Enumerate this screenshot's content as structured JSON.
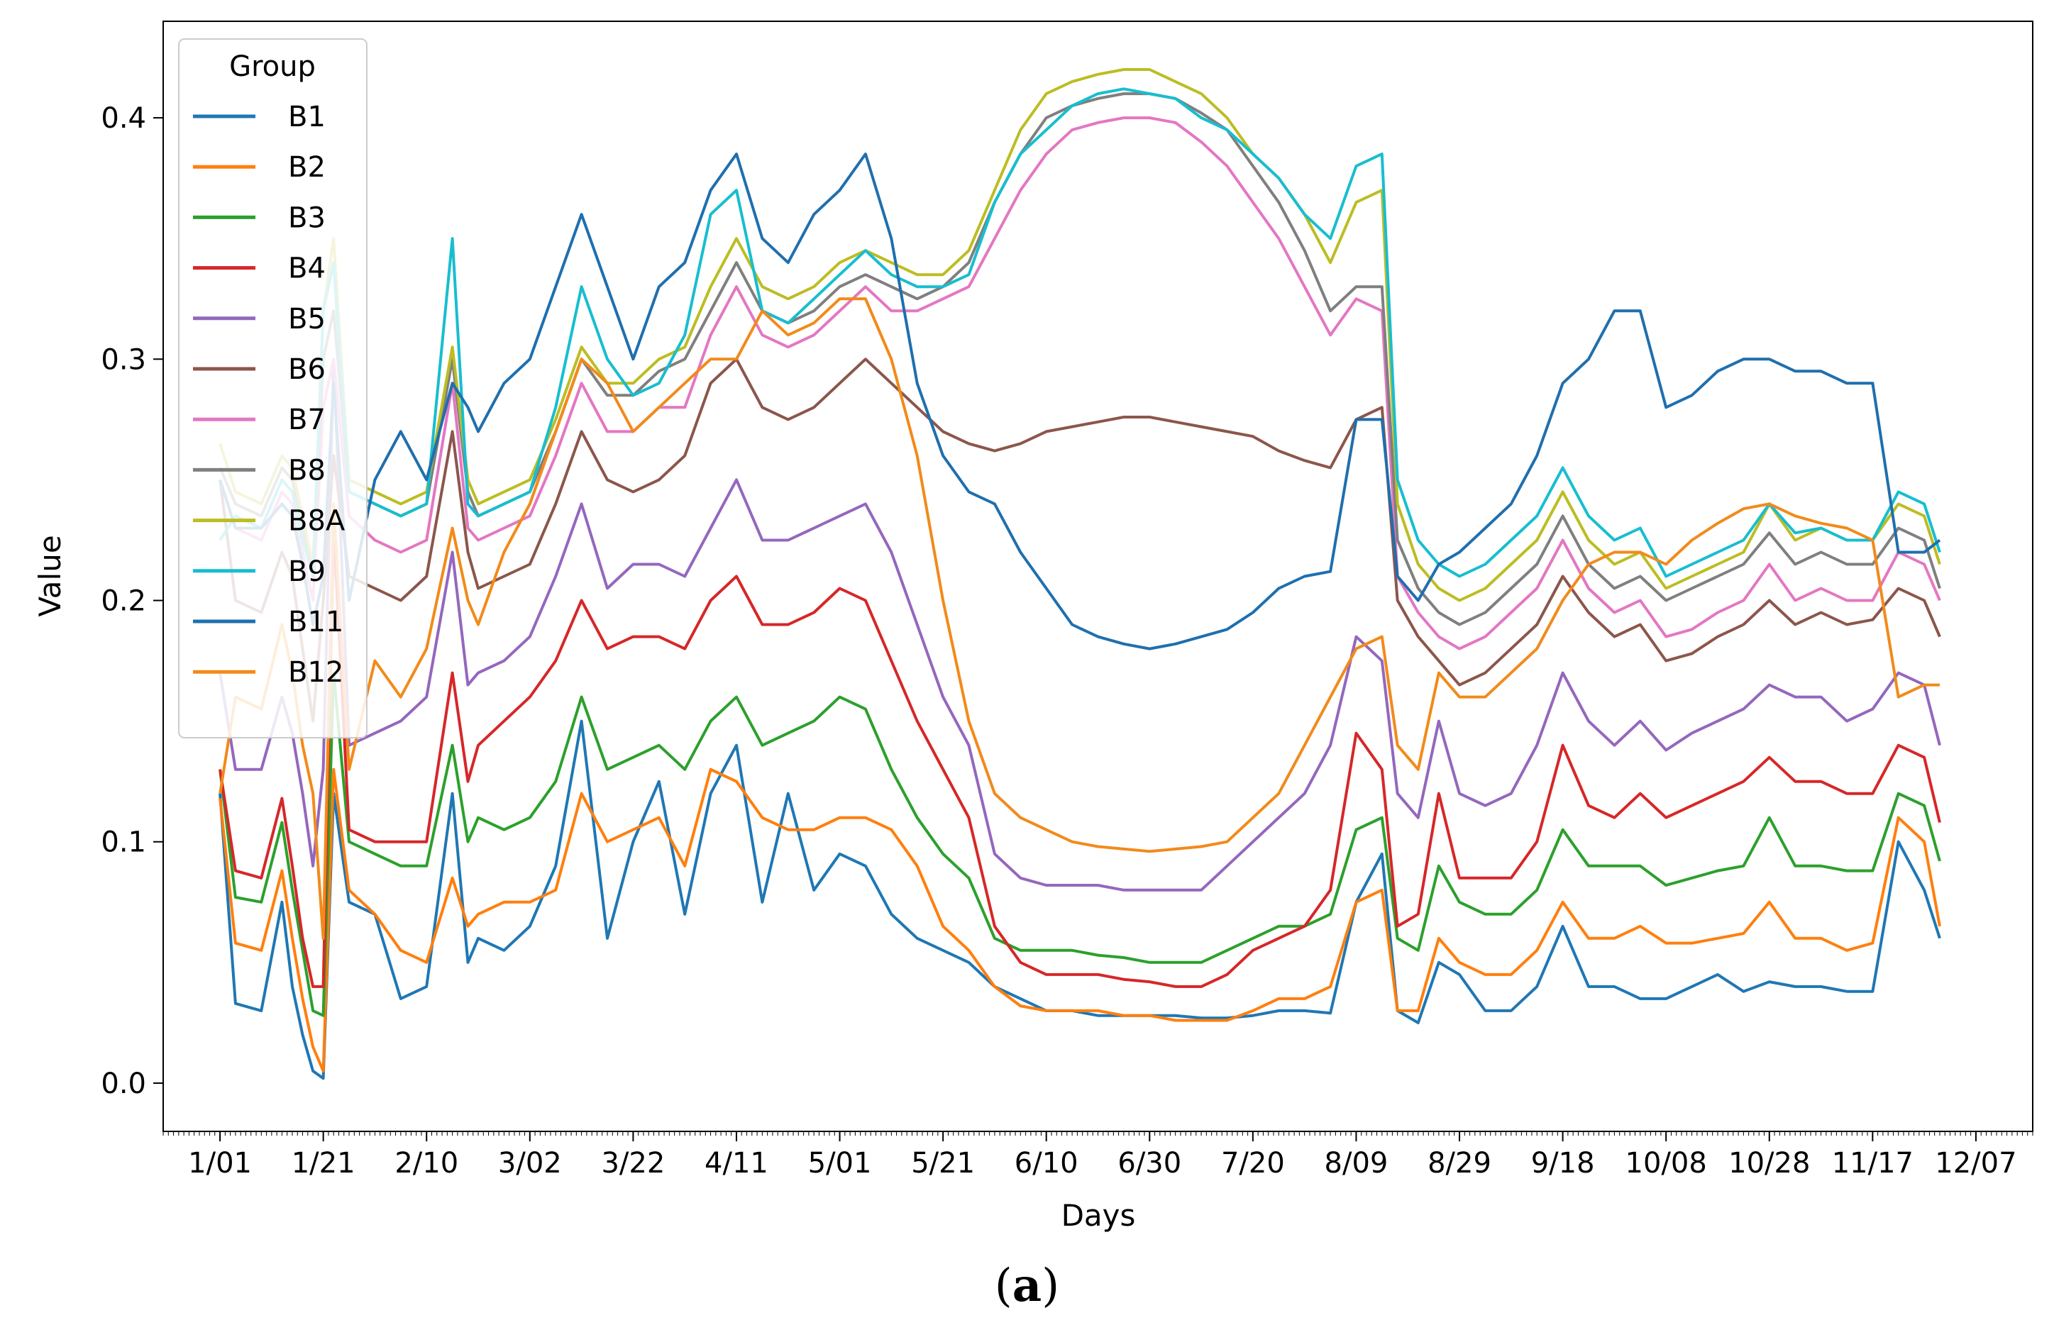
{
  "caption": {
    "open": "(",
    "letter": "a",
    "close": ")"
  },
  "chart_data": {
    "type": "line",
    "title": "",
    "xlabel": "Days",
    "ylabel": "Value",
    "xlim": [
      -11,
      351
    ],
    "ylim": [
      -0.02,
      0.44
    ],
    "x_ticks": [
      {
        "day": 0,
        "label": "1/01"
      },
      {
        "day": 20,
        "label": "1/21"
      },
      {
        "day": 40,
        "label": "2/10"
      },
      {
        "day": 60,
        "label": "3/02"
      },
      {
        "day": 80,
        "label": "3/22"
      },
      {
        "day": 100,
        "label": "4/11"
      },
      {
        "day": 120,
        "label": "5/01"
      },
      {
        "day": 140,
        "label": "5/21"
      },
      {
        "day": 160,
        "label": "6/10"
      },
      {
        "day": 180,
        "label": "6/30"
      },
      {
        "day": 200,
        "label": "7/20"
      },
      {
        "day": 220,
        "label": "8/09"
      },
      {
        "day": 240,
        "label": "8/29"
      },
      {
        "day": 260,
        "label": "9/18"
      },
      {
        "day": 280,
        "label": "10/08"
      },
      {
        "day": 300,
        "label": "10/28"
      },
      {
        "day": 320,
        "label": "11/17"
      },
      {
        "day": 340,
        "label": "12/07"
      }
    ],
    "y_ticks": [
      {
        "value": 0.0,
        "label": "0.0"
      },
      {
        "value": 0.1,
        "label": "0.1"
      },
      {
        "value": 0.2,
        "label": "0.2"
      },
      {
        "value": 0.3,
        "label": "0.3"
      },
      {
        "value": 0.4,
        "label": "0.4"
      }
    ],
    "legend": {
      "title": "Group",
      "position": "top-left"
    },
    "x": [
      0,
      3,
      8,
      12,
      14,
      16,
      18,
      20,
      22,
      25,
      30,
      35,
      40,
      45,
      48,
      50,
      55,
      60,
      65,
      70,
      75,
      80,
      85,
      90,
      95,
      100,
      105,
      110,
      115,
      120,
      125,
      130,
      135,
      140,
      145,
      150,
      155,
      160,
      165,
      170,
      175,
      180,
      185,
      190,
      195,
      200,
      205,
      210,
      215,
      220,
      225,
      228,
      232,
      236,
      240,
      245,
      250,
      255,
      260,
      265,
      270,
      275,
      280,
      285,
      290,
      295,
      300,
      305,
      310,
      315,
      320,
      325,
      330,
      333
    ],
    "series": [
      {
        "name": "B1",
        "color": "#1f77b4",
        "values": [
          0.12,
          0.033,
          0.03,
          0.075,
          0.04,
          0.02,
          0.005,
          0.002,
          0.12,
          0.075,
          0.07,
          0.035,
          0.04,
          0.12,
          0.05,
          0.06,
          0.055,
          0.065,
          0.09,
          0.15,
          0.06,
          0.1,
          0.125,
          0.07,
          0.12,
          0.14,
          0.075,
          0.12,
          0.08,
          0.095,
          0.09,
          0.07,
          0.06,
          0.055,
          0.05,
          0.04,
          0.035,
          0.03,
          0.03,
          0.028,
          0.028,
          0.028,
          0.028,
          0.027,
          0.027,
          0.028,
          0.03,
          0.03,
          0.029,
          0.075,
          0.095,
          0.03,
          0.025,
          0.05,
          0.045,
          0.03,
          0.03,
          0.04,
          0.065,
          0.04,
          0.04,
          0.035,
          0.035,
          0.04,
          0.045,
          0.038,
          0.042,
          0.04,
          0.04,
          0.038,
          0.038,
          0.1,
          0.08,
          0.06
        ]
      },
      {
        "name": "B2",
        "color": "#ff7f0e",
        "values": [
          0.118,
          0.058,
          0.055,
          0.088,
          0.06,
          0.035,
          0.015,
          0.005,
          0.13,
          0.08,
          0.07,
          0.055,
          0.05,
          0.085,
          0.065,
          0.07,
          0.075,
          0.075,
          0.08,
          0.12,
          0.1,
          0.105,
          0.11,
          0.09,
          0.13,
          0.125,
          0.11,
          0.105,
          0.105,
          0.11,
          0.11,
          0.105,
          0.09,
          0.065,
          0.055,
          0.04,
          0.032,
          0.03,
          0.03,
          0.03,
          0.028,
          0.028,
          0.026,
          0.026,
          0.026,
          0.03,
          0.035,
          0.035,
          0.04,
          0.075,
          0.08,
          0.03,
          0.03,
          0.06,
          0.05,
          0.045,
          0.045,
          0.055,
          0.075,
          0.06,
          0.06,
          0.065,
          0.058,
          0.058,
          0.06,
          0.062,
          0.075,
          0.06,
          0.06,
          0.055,
          0.058,
          0.11,
          0.1,
          0.065
        ]
      },
      {
        "name": "B3",
        "color": "#2ca02c",
        "values": [
          0.13,
          0.077,
          0.075,
          0.108,
          0.08,
          0.055,
          0.03,
          0.028,
          0.17,
          0.1,
          0.095,
          0.09,
          0.09,
          0.14,
          0.1,
          0.11,
          0.105,
          0.11,
          0.125,
          0.16,
          0.13,
          0.135,
          0.14,
          0.13,
          0.15,
          0.16,
          0.14,
          0.145,
          0.15,
          0.16,
          0.155,
          0.13,
          0.11,
          0.095,
          0.085,
          0.06,
          0.055,
          0.055,
          0.055,
          0.053,
          0.052,
          0.05,
          0.05,
          0.05,
          0.055,
          0.06,
          0.065,
          0.065,
          0.07,
          0.105,
          0.11,
          0.06,
          0.055,
          0.09,
          0.075,
          0.07,
          0.07,
          0.08,
          0.105,
          0.09,
          0.09,
          0.09,
          0.082,
          0.085,
          0.088,
          0.09,
          0.11,
          0.09,
          0.09,
          0.088,
          0.088,
          0.12,
          0.115,
          0.092
        ]
      },
      {
        "name": "B4",
        "color": "#d62728",
        "values": [
          0.13,
          0.088,
          0.085,
          0.118,
          0.09,
          0.06,
          0.04,
          0.04,
          0.23,
          0.105,
          0.1,
          0.1,
          0.1,
          0.17,
          0.125,
          0.14,
          0.15,
          0.16,
          0.175,
          0.2,
          0.18,
          0.185,
          0.185,
          0.18,
          0.2,
          0.21,
          0.19,
          0.19,
          0.195,
          0.205,
          0.2,
          0.175,
          0.15,
          0.13,
          0.11,
          0.065,
          0.05,
          0.045,
          0.045,
          0.045,
          0.043,
          0.042,
          0.04,
          0.04,
          0.045,
          0.055,
          0.06,
          0.065,
          0.08,
          0.145,
          0.13,
          0.065,
          0.07,
          0.12,
          0.085,
          0.085,
          0.085,
          0.1,
          0.14,
          0.115,
          0.11,
          0.12,
          0.11,
          0.115,
          0.12,
          0.125,
          0.135,
          0.125,
          0.125,
          0.12,
          0.12,
          0.14,
          0.135,
          0.108
        ]
      },
      {
        "name": "B5",
        "color": "#9467bd",
        "values": [
          0.17,
          0.13,
          0.13,
          0.16,
          0.145,
          0.12,
          0.09,
          0.13,
          0.3,
          0.14,
          0.145,
          0.15,
          0.16,
          0.22,
          0.165,
          0.17,
          0.175,
          0.185,
          0.21,
          0.24,
          0.205,
          0.215,
          0.215,
          0.21,
          0.23,
          0.25,
          0.225,
          0.225,
          0.23,
          0.235,
          0.24,
          0.22,
          0.19,
          0.16,
          0.14,
          0.095,
          0.085,
          0.082,
          0.082,
          0.082,
          0.08,
          0.08,
          0.08,
          0.08,
          0.09,
          0.1,
          0.11,
          0.12,
          0.14,
          0.185,
          0.175,
          0.12,
          0.11,
          0.15,
          0.12,
          0.115,
          0.12,
          0.14,
          0.17,
          0.15,
          0.14,
          0.15,
          0.138,
          0.145,
          0.15,
          0.155,
          0.165,
          0.16,
          0.16,
          0.15,
          0.155,
          0.17,
          0.165,
          0.14
        ]
      },
      {
        "name": "B6",
        "color": "#8c564b",
        "values": [
          0.25,
          0.2,
          0.195,
          0.22,
          0.21,
          0.18,
          0.15,
          0.2,
          0.26,
          0.21,
          0.205,
          0.2,
          0.21,
          0.27,
          0.22,
          0.205,
          0.21,
          0.215,
          0.24,
          0.27,
          0.25,
          0.245,
          0.25,
          0.26,
          0.29,
          0.3,
          0.28,
          0.275,
          0.28,
          0.29,
          0.3,
          0.29,
          0.28,
          0.27,
          0.265,
          0.262,
          0.265,
          0.27,
          0.272,
          0.274,
          0.276,
          0.276,
          0.274,
          0.272,
          0.27,
          0.268,
          0.262,
          0.258,
          0.255,
          0.275,
          0.28,
          0.2,
          0.185,
          0.175,
          0.165,
          0.17,
          0.18,
          0.19,
          0.21,
          0.195,
          0.185,
          0.19,
          0.175,
          0.178,
          0.185,
          0.19,
          0.2,
          0.19,
          0.195,
          0.19,
          0.192,
          0.205,
          0.2,
          0.185
        ]
      },
      {
        "name": "B7",
        "color": "#e377c2",
        "values": [
          0.25,
          0.23,
          0.225,
          0.245,
          0.24,
          0.22,
          0.2,
          0.28,
          0.3,
          0.235,
          0.225,
          0.22,
          0.225,
          0.29,
          0.23,
          0.225,
          0.23,
          0.235,
          0.26,
          0.29,
          0.27,
          0.27,
          0.28,
          0.28,
          0.31,
          0.33,
          0.31,
          0.305,
          0.31,
          0.32,
          0.33,
          0.32,
          0.32,
          0.325,
          0.33,
          0.35,
          0.37,
          0.385,
          0.395,
          0.398,
          0.4,
          0.4,
          0.398,
          0.39,
          0.38,
          0.365,
          0.35,
          0.33,
          0.31,
          0.325,
          0.32,
          0.21,
          0.195,
          0.185,
          0.18,
          0.185,
          0.195,
          0.205,
          0.225,
          0.205,
          0.195,
          0.2,
          0.185,
          0.188,
          0.195,
          0.2,
          0.215,
          0.2,
          0.205,
          0.2,
          0.2,
          0.22,
          0.215,
          0.2
        ]
      },
      {
        "name": "B8",
        "color": "#7f7f7f",
        "values": [
          0.255,
          0.24,
          0.235,
          0.255,
          0.25,
          0.23,
          0.21,
          0.3,
          0.32,
          0.245,
          0.24,
          0.235,
          0.24,
          0.3,
          0.245,
          0.235,
          0.24,
          0.245,
          0.27,
          0.3,
          0.285,
          0.285,
          0.295,
          0.3,
          0.32,
          0.34,
          0.32,
          0.315,
          0.32,
          0.33,
          0.335,
          0.33,
          0.325,
          0.33,
          0.34,
          0.365,
          0.385,
          0.4,
          0.405,
          0.408,
          0.41,
          0.41,
          0.408,
          0.402,
          0.395,
          0.38,
          0.365,
          0.345,
          0.32,
          0.33,
          0.33,
          0.225,
          0.205,
          0.195,
          0.19,
          0.195,
          0.205,
          0.215,
          0.235,
          0.215,
          0.205,
          0.21,
          0.2,
          0.205,
          0.21,
          0.215,
          0.228,
          0.215,
          0.22,
          0.215,
          0.215,
          0.23,
          0.225,
          0.205
        ]
      },
      {
        "name": "B8A",
        "color": "#bcbd22",
        "values": [
          0.265,
          0.245,
          0.24,
          0.26,
          0.255,
          0.235,
          0.215,
          0.32,
          0.35,
          0.25,
          0.245,
          0.24,
          0.245,
          0.305,
          0.25,
          0.24,
          0.245,
          0.25,
          0.275,
          0.305,
          0.29,
          0.29,
          0.3,
          0.305,
          0.33,
          0.35,
          0.33,
          0.325,
          0.33,
          0.34,
          0.345,
          0.34,
          0.335,
          0.335,
          0.345,
          0.37,
          0.395,
          0.41,
          0.415,
          0.418,
          0.42,
          0.42,
          0.415,
          0.41,
          0.4,
          0.385,
          0.375,
          0.36,
          0.34,
          0.365,
          0.37,
          0.24,
          0.215,
          0.205,
          0.2,
          0.205,
          0.215,
          0.225,
          0.245,
          0.225,
          0.215,
          0.22,
          0.205,
          0.21,
          0.215,
          0.22,
          0.24,
          0.225,
          0.23,
          0.225,
          0.225,
          0.24,
          0.235,
          0.215
        ]
      },
      {
        "name": "B9",
        "color": "#17becf",
        "values": [
          0.225,
          0.235,
          0.23,
          0.25,
          0.245,
          0.225,
          0.21,
          0.32,
          0.34,
          0.245,
          0.24,
          0.235,
          0.24,
          0.35,
          0.24,
          0.235,
          0.24,
          0.245,
          0.28,
          0.33,
          0.3,
          0.285,
          0.29,
          0.31,
          0.36,
          0.37,
          0.32,
          0.315,
          0.325,
          0.335,
          0.345,
          0.335,
          0.33,
          0.33,
          0.335,
          0.365,
          0.385,
          0.395,
          0.405,
          0.41,
          0.412,
          0.41,
          0.408,
          0.4,
          0.395,
          0.385,
          0.375,
          0.36,
          0.35,
          0.38,
          0.385,
          0.25,
          0.225,
          0.215,
          0.21,
          0.215,
          0.225,
          0.235,
          0.255,
          0.235,
          0.225,
          0.23,
          0.21,
          0.215,
          0.22,
          0.225,
          0.24,
          0.228,
          0.23,
          0.225,
          0.225,
          0.245,
          0.24,
          0.22
        ]
      },
      {
        "name": "B11",
        "color": "#1f6fae",
        "values": [
          0.25,
          0.23,
          0.23,
          0.24,
          0.235,
          0.215,
          0.19,
          0.21,
          0.29,
          0.2,
          0.25,
          0.27,
          0.25,
          0.29,
          0.28,
          0.27,
          0.29,
          0.3,
          0.33,
          0.36,
          0.33,
          0.3,
          0.33,
          0.34,
          0.37,
          0.385,
          0.35,
          0.34,
          0.36,
          0.37,
          0.385,
          0.35,
          0.29,
          0.26,
          0.245,
          0.24,
          0.22,
          0.205,
          0.19,
          0.185,
          0.182,
          0.18,
          0.182,
          0.185,
          0.188,
          0.195,
          0.205,
          0.21,
          0.212,
          0.275,
          0.275,
          0.21,
          0.2,
          0.215,
          0.22,
          0.23,
          0.24,
          0.26,
          0.29,
          0.3,
          0.32,
          0.32,
          0.28,
          0.285,
          0.295,
          0.3,
          0.3,
          0.295,
          0.295,
          0.29,
          0.29,
          0.22,
          0.22,
          0.225
        ]
      },
      {
        "name": "B12",
        "color": "#f28a1a",
        "values": [
          0.12,
          0.16,
          0.155,
          0.19,
          0.17,
          0.14,
          0.12,
          0.06,
          0.24,
          0.13,
          0.175,
          0.16,
          0.18,
          0.23,
          0.2,
          0.19,
          0.22,
          0.24,
          0.27,
          0.3,
          0.29,
          0.27,
          0.28,
          0.29,
          0.3,
          0.3,
          0.32,
          0.31,
          0.315,
          0.325,
          0.325,
          0.3,
          0.26,
          0.2,
          0.15,
          0.12,
          0.11,
          0.105,
          0.1,
          0.098,
          0.097,
          0.096,
          0.097,
          0.098,
          0.1,
          0.11,
          0.12,
          0.14,
          0.16,
          0.18,
          0.185,
          0.14,
          0.13,
          0.17,
          0.16,
          0.16,
          0.17,
          0.18,
          0.2,
          0.215,
          0.22,
          0.22,
          0.215,
          0.225,
          0.232,
          0.238,
          0.24,
          0.235,
          0.232,
          0.23,
          0.225,
          0.16,
          0.165,
          0.165
        ]
      }
    ]
  }
}
